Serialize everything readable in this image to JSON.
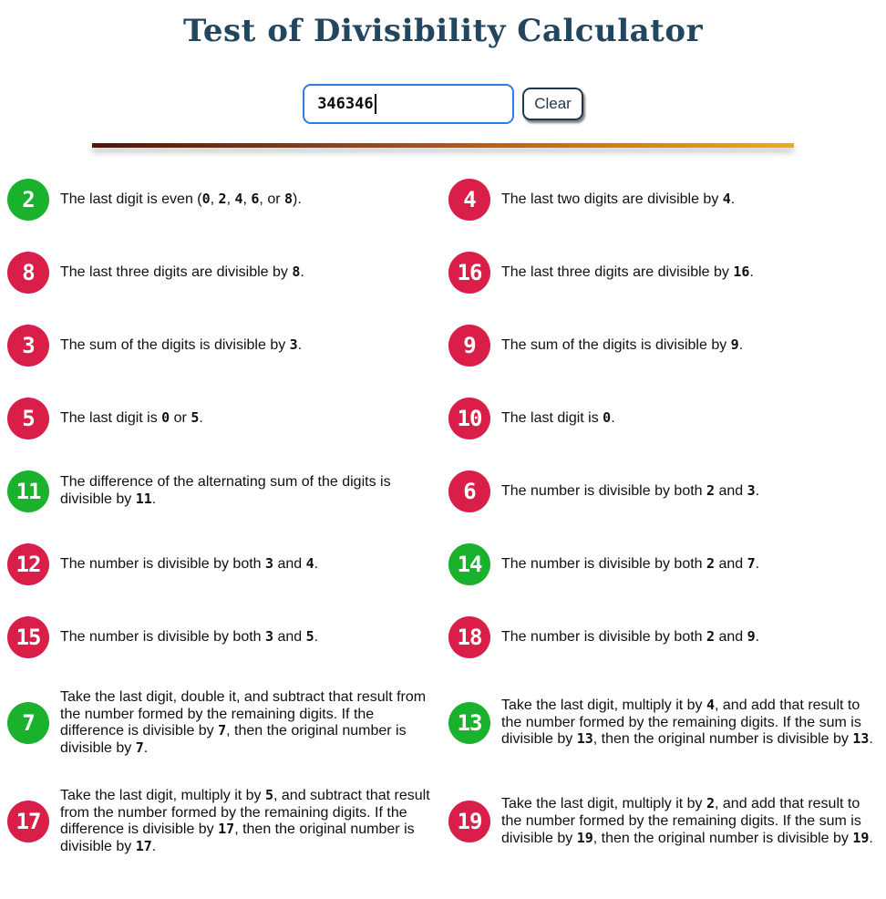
{
  "page": {
    "title": "Test of Divisibility Calculator"
  },
  "input": {
    "value": "346346"
  },
  "toolbar": {
    "clear_label": "Clear"
  },
  "colors": {
    "green": "#1ab22d",
    "red": "#d91e4a",
    "title": "#22465e",
    "input_border": "#2e7be5",
    "button": "#22384a",
    "divider_from": "#5c0e0e",
    "divider_to": "#f6a71d"
  },
  "rules": [
    {
      "divisor": "2",
      "status": "pass",
      "text": "The last digit is even (0, 2, 4, 6, or 8)."
    },
    {
      "divisor": "4",
      "status": "fail",
      "text": "The last two digits are divisible by 4."
    },
    {
      "divisor": "8",
      "status": "fail",
      "text": "The last three digits are divisible by 8."
    },
    {
      "divisor": "16",
      "status": "fail",
      "text": "The last three digits are divisible by 16."
    },
    {
      "divisor": "3",
      "status": "fail",
      "text": "The sum of the digits is divisible by 3."
    },
    {
      "divisor": "9",
      "status": "fail",
      "text": "The sum of the digits is divisible by 9."
    },
    {
      "divisor": "5",
      "status": "fail",
      "text": "The last digit is 0 or 5."
    },
    {
      "divisor": "10",
      "status": "fail",
      "text": "The last digit is 0."
    },
    {
      "divisor": "11",
      "status": "pass",
      "text": "The difference of the alternating sum of the digits is divisible by 11."
    },
    {
      "divisor": "6",
      "status": "fail",
      "text": "The number is divisible by both 2 and 3."
    },
    {
      "divisor": "12",
      "status": "fail",
      "text": "The number is divisible by both 3 and 4."
    },
    {
      "divisor": "14",
      "status": "pass",
      "text": "The number is divisible by both 2 and 7."
    },
    {
      "divisor": "15",
      "status": "fail",
      "text": "The number is divisible by both 3 and 5."
    },
    {
      "divisor": "18",
      "status": "fail",
      "text": "The number is divisible by both 2 and 9."
    },
    {
      "divisor": "7",
      "status": "pass",
      "text": "Take the last digit, double it, and subtract that result from the number formed by the remaining digits. If the difference is divisible by 7, then the original number is divisible by 7."
    },
    {
      "divisor": "13",
      "status": "pass",
      "text": "Take the last digit, multiply it by 4, and add that result to the number formed by the remaining digits. If the sum is divisible by 13, then the original number is divisible by 13."
    },
    {
      "divisor": "17",
      "status": "fail",
      "text": "Take the last digit, multiply it by 5, and subtract that result from the number formed by the remaining digits. If the difference is divisible by 17, then the original number is divisible by 17."
    },
    {
      "divisor": "19",
      "status": "fail",
      "text": "Take the last digit, multiply it by 2, and add that result to the number formed by the remaining digits. If the sum is divisible by 19, then the original number is divisible by 19."
    }
  ]
}
